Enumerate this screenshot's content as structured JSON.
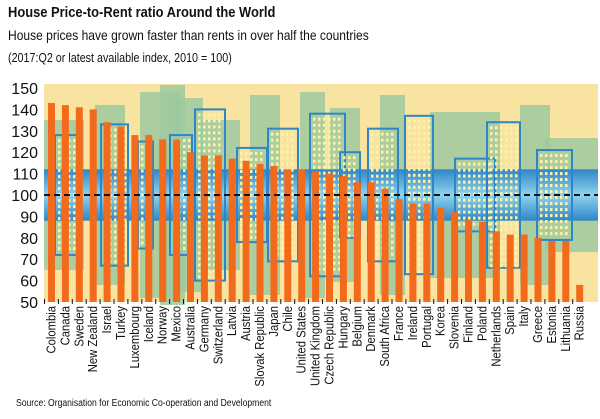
{
  "chart_data": {
    "type": "bar",
    "title": "House Price-to-Rent ratio Around the World",
    "subtitle": "House prices have grown faster than rents in over half the countries",
    "note": "(2017:Q2 or latest available index, 2010 = 100)",
    "source": "Source: Organisation for Economic Co-operation and Development",
    "xlabel": "",
    "ylabel": "",
    "ylim": [
      50,
      150
    ],
    "yticks": [
      50,
      60,
      70,
      80,
      90,
      100,
      110,
      120,
      130,
      140,
      150
    ],
    "reference_line": 100,
    "grid": false,
    "colors": {
      "bar": "#F26A1B",
      "background": "#F8E4A0",
      "skyline_blue": "#2F86C6",
      "skyline_green": "#9EC9A0",
      "reference_line": "#111111"
    },
    "categories": [
      "Colombia",
      "Canada",
      "Sweden",
      "New Zealand",
      "Israel",
      "Turkey",
      "Luxembourg",
      "Iceland",
      "Norway",
      "Mexico",
      "Australia",
      "Germany",
      "Switzerland",
      "Latvia",
      "Austria",
      "Slovak Republic",
      "Japan",
      "Chile",
      "United States",
      "United Kingdom",
      "Czech Republic",
      "Hungary",
      "Belgium",
      "Denmark",
      "South Africa",
      "France",
      "Ireland",
      "Portugal",
      "Korea",
      "Slovenia",
      "Finland",
      "Poland",
      "Netherlands",
      "Spain",
      "Italy",
      "Greece",
      "Estonia",
      "Lithuania",
      "Russia"
    ],
    "values": [
      143,
      142,
      141,
      140,
      134,
      132,
      128,
      128,
      126,
      126,
      120,
      118.5,
      118.5,
      117,
      116,
      114.5,
      113.5,
      112,
      112,
      111,
      110,
      109,
      106,
      106,
      103,
      98,
      96,
      96,
      94,
      92,
      88.5,
      87.5,
      83,
      81.5,
      81.5,
      80,
      78.5,
      78.5,
      58
    ]
  }
}
